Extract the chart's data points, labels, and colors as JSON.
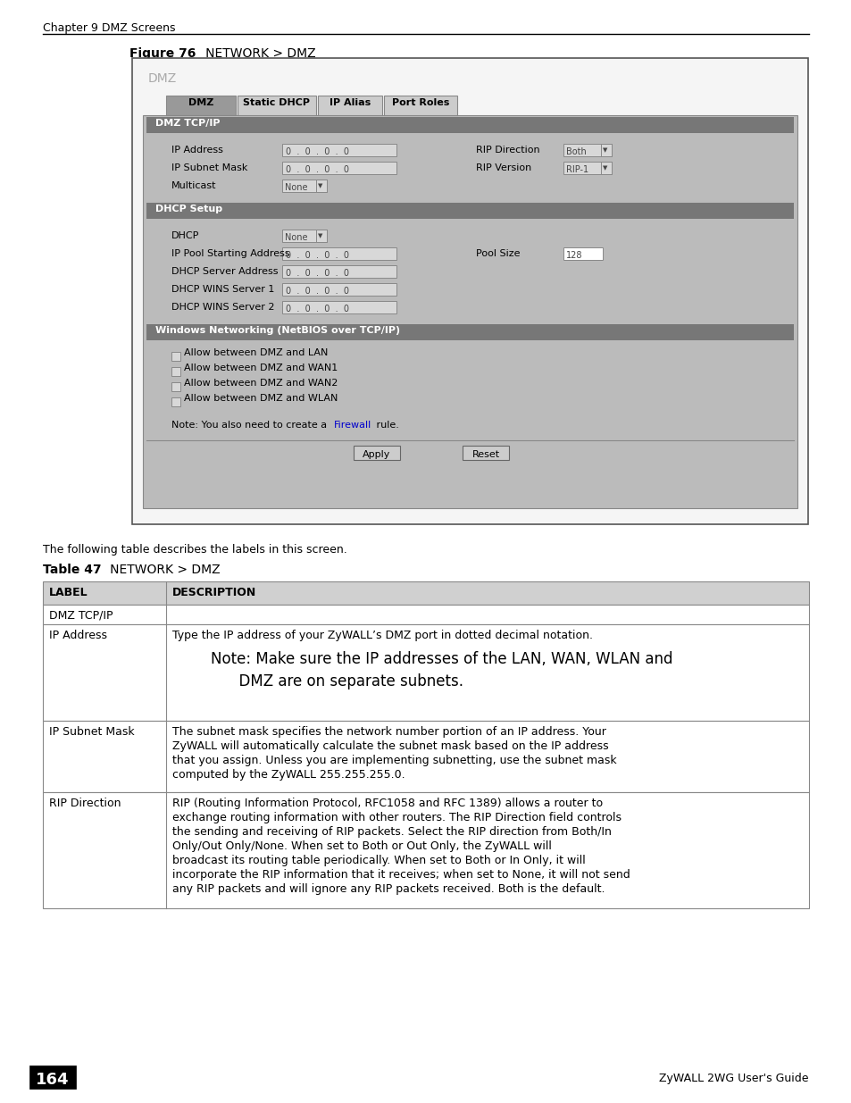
{
  "page_bg": "#ffffff",
  "chapter_header": "Chapter 9 DMZ Screens",
  "figure_label": "Figure 76",
  "figure_title": "NETWORK > DMZ",
  "table_label": "Table 47",
  "table_title": "NETWORK > DMZ",
  "following_text": "The following table describes the labels in this screen.",
  "page_number": "164",
  "footer_right": "ZyWALL 2WG User's Guide",
  "dmz_ui": {
    "title": "DMZ",
    "tabs": [
      "DMZ",
      "Static DHCP",
      "IP Alias",
      "Port Roles"
    ],
    "checkboxes": [
      "Allow between DMZ and LAN",
      "Allow between DMZ and WAN1",
      "Allow between DMZ and WAN2",
      "Allow between DMZ and WLAN"
    ]
  },
  "colors": {
    "page_bg": "#ffffff",
    "header_bg": "#d0d0d0",
    "section_header_bg": "#777777",
    "section_header_fg": "#ffffff",
    "tab_active_bg": "#999999",
    "tab_inactive_bg": "#cccccc",
    "ui_bg": "#bbbbbb",
    "ui_outer_bg": "#f0f0f0",
    "field_bg": "#d8d8d8",
    "border": "#666666",
    "text": "#000000",
    "table_header_bg": "#d0d0d0",
    "table_row_bg": "#ffffff",
    "note_link": "#0000cc",
    "btn_bg": "#cccccc",
    "dark_gray": "#444444",
    "mid_gray": "#888888",
    "light_gray": "#aaaaaa"
  },
  "rip_lines": [
    "RIP (Routing Information Protocol, RFC1058 and RFC 1389) allows a router to",
    "exchange routing information with other routers. The RIP Direction field controls",
    "the sending and receiving of RIP packets. Select the RIP direction from Both/In",
    "Only/Out Only/None. When set to Both or Out Only, the ZyWALL will",
    "broadcast its routing table periodically. When set to Both or In Only, it will",
    "incorporate the RIP information that it receives; when set to None, it will not send",
    "any RIP packets and will ignore any RIP packets received. Both is the default."
  ],
  "r3_desc_lines": [
    "The subnet mask specifies the network number portion of an IP address. Your",
    "ZyWALL will automatically calculate the subnet mask based on the IP address",
    "that you assign. Unless you are implementing subnetting, use the subnet mask",
    "computed by the ZyWALL 255.255.255.0."
  ],
  "ip_address_desc": "Type the IP address of your ZyWALL’s DMZ port in dotted decimal notation.",
  "note_line1": "Note: Make sure the IP addresses of the LAN, WAN, WLAN and",
  "note_line2": "      DMZ are on separate subnets.",
  "ui_note": "Note: You also need to create a ",
  "ui_note_link": "Firewall",
  "ui_note_end": " rule."
}
